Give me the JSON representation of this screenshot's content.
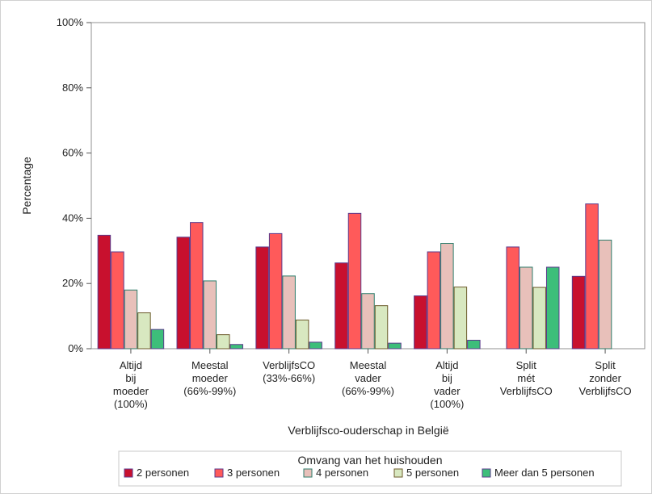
{
  "chart_data": {
    "type": "bar",
    "xlabel": "Verblijfsco-ouderschap in België",
    "ylabel": "Percentage",
    "ylim": [
      0,
      100
    ],
    "yticks": [
      "0%",
      "20%",
      "40%",
      "60%",
      "80%",
      "100%"
    ],
    "ytick_values": [
      0,
      20,
      40,
      60,
      80,
      100
    ],
    "categories": [
      [
        "Altijd",
        "bij",
        "moeder",
        "(100%)"
      ],
      [
        "Meestal",
        "moeder",
        "(66%-99%)"
      ],
      [
        "VerblijfsCO",
        "(33%-66%)"
      ],
      [
        "Meestal",
        "vader",
        "(66%-99%)"
      ],
      [
        "Altijd",
        "bij",
        "vader",
        "(100%)"
      ],
      [
        "Split",
        "mét",
        "VerblijfsCO"
      ],
      [
        "Split",
        "zonder",
        "VerblijfsCO"
      ]
    ],
    "legend": {
      "title": "Omvang van het huishouden",
      "placement": "bottom"
    },
    "series": [
      {
        "name": "2 personen",
        "color": "#C8102E",
        "border": "#5B3A8C",
        "values": [
          34.8,
          34.2,
          31.2,
          26.3,
          16.2,
          null,
          22.2
        ]
      },
      {
        "name": "3 personen",
        "color": "#FF5A5A",
        "border": "#5B3A8C",
        "values": [
          29.7,
          38.7,
          35.3,
          41.5,
          29.7,
          31.2,
          44.4
        ]
      },
      {
        "name": "4 personen",
        "color": "#E8C0BA",
        "border": "#2E7D6B",
        "values": [
          18.0,
          20.8,
          22.3,
          16.9,
          32.3,
          25.0,
          33.3
        ]
      },
      {
        "name": "5 personen",
        "color": "#D8E8C0",
        "border": "#6B5A2A",
        "values": [
          11.0,
          4.3,
          8.8,
          13.2,
          18.9,
          18.8,
          null
        ]
      },
      {
        "name": "Meer dan 5 personen",
        "color": "#3DBE7A",
        "border": "#5B3A8C",
        "values": [
          5.9,
          1.3,
          2.0,
          1.7,
          2.6,
          25.0,
          null
        ]
      }
    ]
  }
}
